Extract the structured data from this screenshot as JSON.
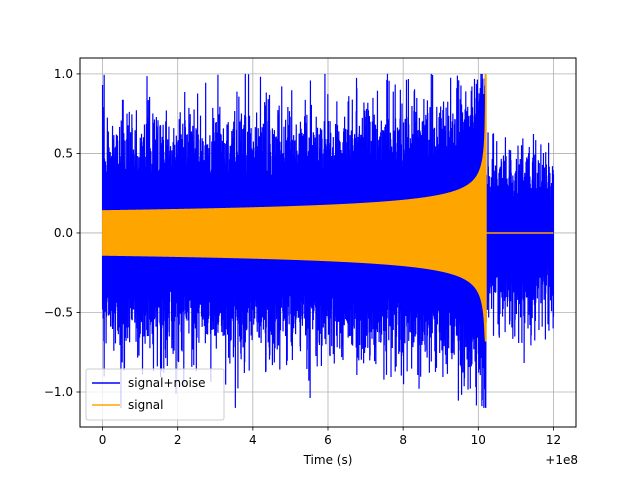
{
  "chart_data": {
    "type": "line",
    "title": "",
    "xlabel": "Time (s)",
    "ylabel": "",
    "x_offset_label": "+1e8",
    "xlim": [
      -0.6,
      12.6
    ],
    "ylim": [
      -1.22,
      1.1
    ],
    "x_ticks": [
      0,
      2,
      4,
      6,
      8,
      10,
      12
    ],
    "x_tick_labels": [
      "0",
      "2",
      "4",
      "6",
      "8",
      "10",
      "12"
    ],
    "y_ticks": [
      -1.0,
      -0.5,
      0.0,
      0.5,
      1.0
    ],
    "y_tick_labels": [
      "−1.0",
      "−0.5",
      "0.0",
      "0.5",
      "1.0"
    ],
    "grid": true,
    "legend_position": "lower-left",
    "series": [
      {
        "name": "signal+noise",
        "color": "#0000ff",
        "x_range": [
          0,
          12
        ],
        "approx_upper_extent": 1.0,
        "approx_lower_extent": -1.1
      },
      {
        "name": "signal",
        "color": "#ffa500",
        "x_range": [
          0,
          12
        ],
        "envelope_start": 0.14,
        "peak_time": 10.2,
        "peak_max": 1.0,
        "peak_min": -0.68,
        "value_after_peak": 0.0
      }
    ]
  }
}
